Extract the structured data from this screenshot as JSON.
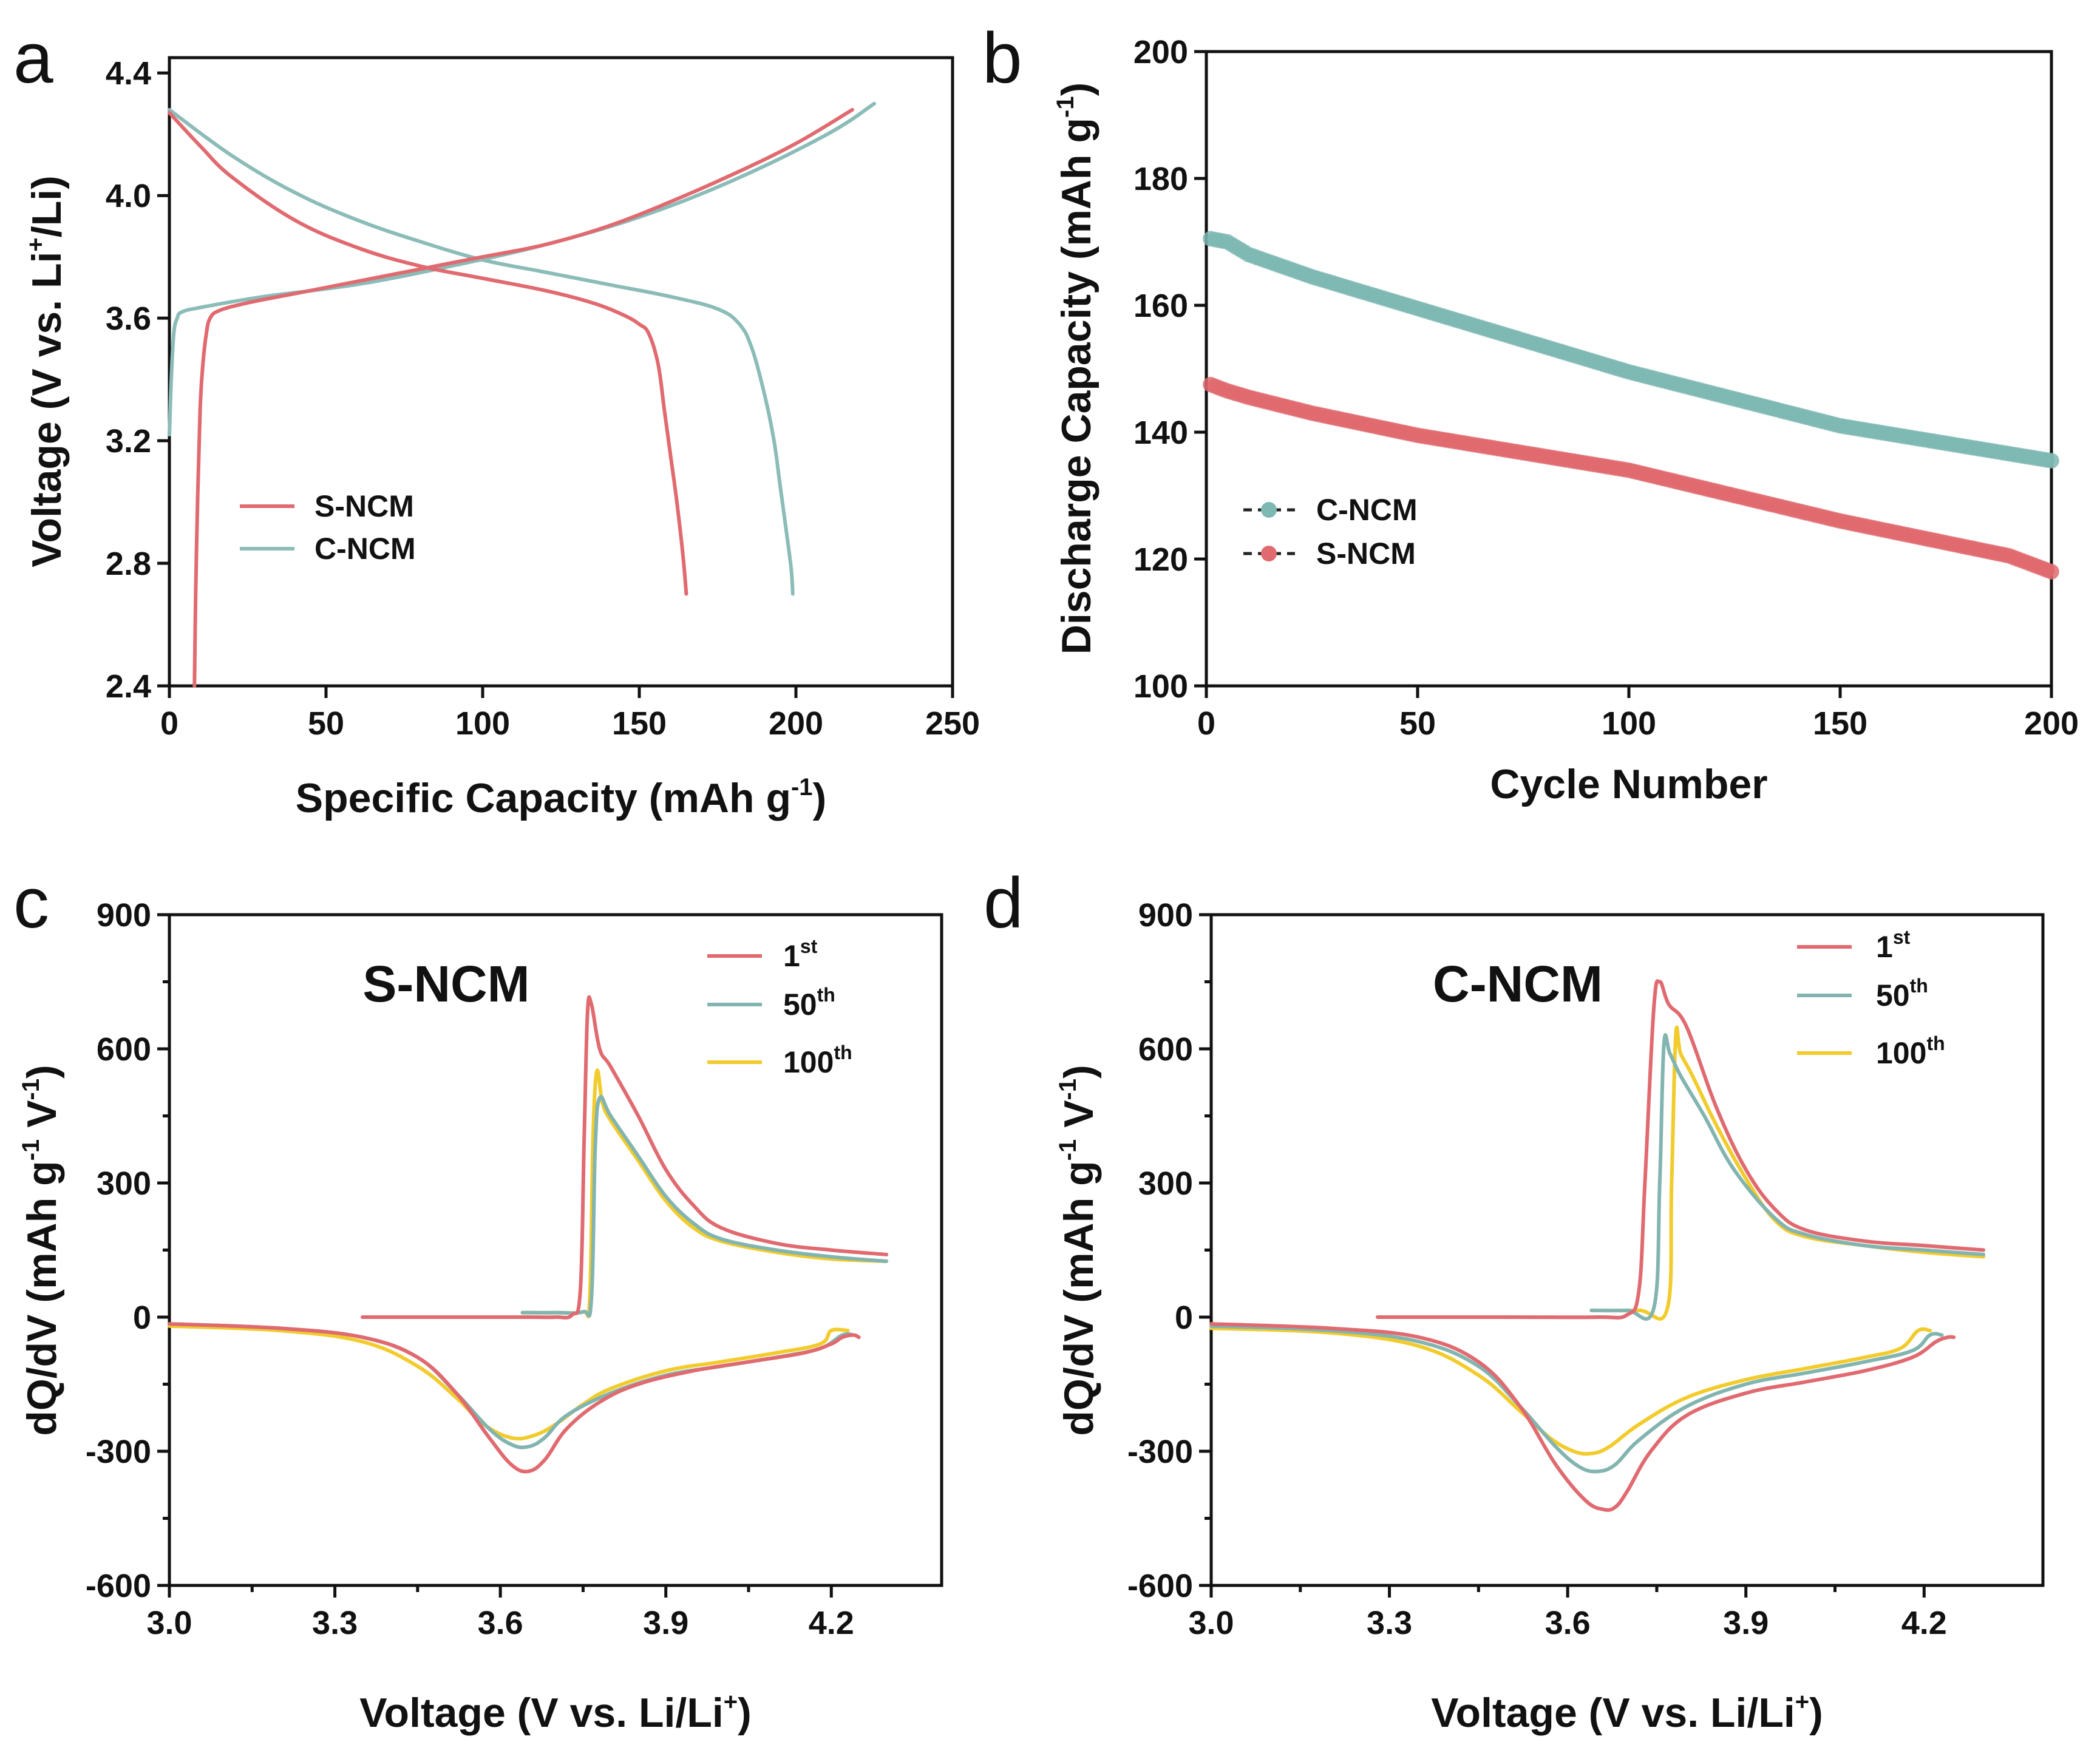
{
  "colors": {
    "s_ncm": "#E06A6F",
    "c_ncm": "#8BBCB8",
    "c_ncm_marker": "#7EB8B3",
    "cycle_1st": "#E06A6F",
    "cycle_50th": "#82B4B0",
    "cycle_100th": "#F2CB2C"
  },
  "chart_data": [
    {
      "panel": "a",
      "type": "line",
      "xlabel": "Specific Capacity (mAh g",
      "xlabel_sup": "-1",
      "xlabel_end": ")",
      "ylabel": "Voltage (V vs. Li",
      "ylabel_sup": "+",
      "ylabel_end": "/Li)",
      "xlim": [
        0,
        250
      ],
      "ylim": [
        2.4,
        4.45
      ],
      "xticks": [
        "0",
        "50",
        "100",
        "150",
        "200",
        "250"
      ],
      "yticks": [
        "2.4",
        "2.8",
        "3.2",
        "3.6",
        "4.0",
        "4.4"
      ],
      "legend": [
        "S-NCM",
        "C-NCM"
      ],
      "series": [
        {
          "name": "S-NCM",
          "segment": "charge",
          "x": [
            8,
            8.4,
            9,
            9.8,
            10.7,
            11.8,
            13,
            16,
            25,
            40,
            60,
            80,
            100,
            120,
            140,
            160,
            180,
            200,
            218
          ],
          "y": [
            2.4,
            2.7,
            3.0,
            3.3,
            3.45,
            3.55,
            3.6,
            3.625,
            3.65,
            3.68,
            3.72,
            3.76,
            3.8,
            3.84,
            3.9,
            3.98,
            4.07,
            4.17,
            4.28
          ]
        },
        {
          "name": "S-NCM",
          "segment": "discharge",
          "x": [
            0,
            10,
            20,
            40,
            60,
            80,
            100,
            120,
            135,
            145,
            150,
            153,
            156,
            158,
            160,
            162,
            164,
            165
          ],
          "y": [
            4.27,
            4.16,
            4.06,
            3.92,
            3.83,
            3.77,
            3.73,
            3.69,
            3.65,
            3.61,
            3.58,
            3.55,
            3.45,
            3.3,
            3.15,
            3.0,
            2.82,
            2.7
          ]
        },
        {
          "name": "C-NCM",
          "segment": "charge",
          "x": [
            0,
            0.6,
            1.4,
            2.5,
            4,
            10,
            30,
            60,
            90,
            120,
            150,
            180,
            210,
            225
          ],
          "y": [
            3.22,
            3.4,
            3.55,
            3.6,
            3.62,
            3.635,
            3.67,
            3.71,
            3.77,
            3.84,
            3.93,
            4.05,
            4.2,
            4.3
          ]
        },
        {
          "name": "C-NCM",
          "segment": "discharge",
          "x": [
            0,
            20,
            40,
            60,
            80,
            100,
            120,
            140,
            160,
            175,
            182,
            186,
            190,
            193,
            195,
            197,
            198.5,
            199
          ],
          "y": [
            4.28,
            4.13,
            4.01,
            3.92,
            3.85,
            3.79,
            3.75,
            3.71,
            3.67,
            3.63,
            3.58,
            3.5,
            3.35,
            3.2,
            3.05,
            2.9,
            2.78,
            2.7
          ]
        }
      ]
    },
    {
      "panel": "b",
      "type": "scatter",
      "xlabel": "Cycle Number",
      "ylabel": "Discharge Capacity (mAh g",
      "ylabel_sup": "-1",
      "ylabel_end": ")",
      "xlim": [
        0,
        200
      ],
      "ylim": [
        100,
        200
      ],
      "xticks": [
        "0",
        "50",
        "100",
        "150",
        "200"
      ],
      "yticks": [
        "100",
        "120",
        "140",
        "160",
        "180",
        "200"
      ],
      "legend": [
        "C-NCM",
        "S-NCM"
      ],
      "series": [
        {
          "name": "C-NCM",
          "x": [
            1,
            5,
            10,
            25,
            50,
            100,
            150,
            200
          ],
          "y": [
            170.5,
            170,
            168,
            164.5,
            159.5,
            149.5,
            141,
            135.5
          ]
        },
        {
          "name": "S-NCM",
          "x": [
            1,
            5,
            10,
            25,
            50,
            100,
            150,
            190,
            200
          ],
          "y": [
            147.5,
            146.5,
            145.5,
            143,
            139.5,
            134,
            126,
            120.5,
            118
          ]
        }
      ]
    },
    {
      "panel": "c",
      "type": "line",
      "sample": "S-NCM",
      "xlabel": "Voltage (V vs. Li/Li",
      "xlabel_sup": "+",
      "xlabel_end": ")",
      "ylabel": "dQ/dV (mAh g",
      "ylabel_sup": "-1",
      "ylabel_mid": " V",
      "ylabel_sup2": "-1",
      "ylabel_end": ")",
      "xlim": [
        3.0,
        4.4
      ],
      "ylim": [
        -600,
        900
      ],
      "xticks": [
        "3.0",
        "3.3",
        "3.6",
        "3.9",
        "4.2"
      ],
      "yticks": [
        "-600",
        "-300",
        "0",
        "300",
        "600",
        "900"
      ],
      "legend": [
        {
          "base": "1",
          "sup": "st"
        },
        {
          "base": "50",
          "sup": "th"
        },
        {
          "base": "100",
          "sup": "th"
        }
      ],
      "series": [
        {
          "name": "1st",
          "segment": "charge",
          "x": [
            3.35,
            3.5,
            3.65,
            3.7,
            3.73,
            3.745,
            3.752,
            3.758,
            3.765,
            3.78,
            3.8,
            3.85,
            3.9,
            3.95,
            4.0,
            4.1,
            4.2,
            4.3
          ],
          "y": [
            0,
            0,
            0,
            0,
            5,
            60,
            400,
            680,
            700,
            600,
            560,
            450,
            330,
            250,
            200,
            165,
            150,
            140
          ]
        },
        {
          "name": "1st",
          "segment": "discharge",
          "x": [
            3.0,
            3.2,
            3.35,
            3.45,
            3.52,
            3.58,
            3.62,
            3.65,
            3.68,
            3.72,
            3.78,
            3.85,
            3.95,
            4.05,
            4.15,
            4.2,
            4.22,
            4.24,
            4.25
          ],
          "y": [
            -15,
            -25,
            -45,
            -90,
            -170,
            -270,
            -330,
            -345,
            -320,
            -250,
            -190,
            -150,
            -120,
            -100,
            -80,
            -60,
            -45,
            -40,
            -45
          ]
        },
        {
          "name": "50th",
          "segment": "charge",
          "x": [
            3.64,
            3.7,
            3.75,
            3.765,
            3.772,
            3.78,
            3.8,
            3.85,
            3.9,
            3.95,
            4.0,
            4.1,
            4.2,
            4.3
          ],
          "y": [
            10,
            10,
            12,
            40,
            380,
            490,
            450,
            360,
            270,
            210,
            175,
            150,
            135,
            125
          ]
        },
        {
          "name": "50th",
          "segment": "discharge",
          "x": [
            3.0,
            3.2,
            3.35,
            3.45,
            3.52,
            3.58,
            3.62,
            3.65,
            3.68,
            3.72,
            3.8,
            3.9,
            4.0,
            4.1,
            4.18,
            4.22,
            4.24
          ],
          "y": [
            -15,
            -25,
            -45,
            -90,
            -170,
            -250,
            -285,
            -290,
            -270,
            -220,
            -170,
            -130,
            -110,
            -90,
            -70,
            -40,
            -40
          ]
        },
        {
          "name": "100th",
          "segment": "charge",
          "x": [
            3.64,
            3.7,
            3.75,
            3.762,
            3.768,
            3.775,
            3.785,
            3.8,
            3.85,
            3.9,
            3.95,
            4.0,
            4.1,
            4.2,
            4.3
          ],
          "y": [
            10,
            10,
            12,
            40,
            400,
            550,
            480,
            440,
            350,
            260,
            200,
            170,
            145,
            130,
            125
          ]
        },
        {
          "name": "100th",
          "segment": "discharge",
          "x": [
            3.0,
            3.2,
            3.35,
            3.45,
            3.52,
            3.57,
            3.62,
            3.66,
            3.7,
            3.75,
            3.8,
            3.9,
            4.0,
            4.1,
            4.18,
            4.2,
            4.23
          ],
          "y": [
            -20,
            -30,
            -55,
            -110,
            -180,
            -240,
            -270,
            -265,
            -240,
            -195,
            -160,
            -120,
            -100,
            -80,
            -60,
            -30,
            -30
          ]
        }
      ]
    },
    {
      "panel": "d",
      "type": "line",
      "sample": "C-NCM",
      "xlabel": "Voltage (V vs. Li/Li",
      "xlabel_sup": "+",
      "xlabel_end": ")",
      "ylabel": "dQ/dV (mAh g",
      "ylabel_sup": "-1",
      "ylabel_mid": " V",
      "ylabel_sup2": "-1",
      "ylabel_end": ")",
      "xlim": [
        3.0,
        4.4
      ],
      "ylim": [
        -600,
        900
      ],
      "xticks": [
        "3.0",
        "3.3",
        "3.6",
        "3.9",
        "4.2"
      ],
      "yticks": [
        "-600",
        "-300",
        "0",
        "300",
        "600",
        "900"
      ],
      "legend": [
        {
          "base": "1",
          "sup": "st"
        },
        {
          "base": "50",
          "sup": "th"
        },
        {
          "base": "100",
          "sup": "th"
        }
      ],
      "series": [
        {
          "name": "1st",
          "segment": "charge",
          "x": [
            3.28,
            3.5,
            3.65,
            3.7,
            3.72,
            3.73,
            3.745,
            3.755,
            3.77,
            3.8,
            3.85,
            3.9,
            3.95,
            4.0,
            4.1,
            4.2,
            4.3
          ],
          "y": [
            0,
            0,
            0,
            5,
            60,
            300,
            690,
            750,
            700,
            650,
            470,
            330,
            240,
            195,
            170,
            160,
            150
          ]
        },
        {
          "name": "1st",
          "segment": "discharge",
          "x": [
            3.0,
            3.2,
            3.35,
            3.45,
            3.52,
            3.58,
            3.63,
            3.66,
            3.68,
            3.7,
            3.74,
            3.8,
            3.9,
            4.0,
            4.1,
            4.18,
            4.22,
            4.24,
            4.25
          ],
          "y": [
            -15,
            -25,
            -45,
            -100,
            -200,
            -330,
            -410,
            -430,
            -425,
            -390,
            -300,
            -220,
            -170,
            -145,
            -120,
            -90,
            -55,
            -45,
            -45
          ]
        },
        {
          "name": "50th",
          "segment": "charge",
          "x": [
            3.64,
            3.7,
            3.745,
            3.755,
            3.762,
            3.772,
            3.79,
            3.83,
            3.88,
            3.95,
            4.0,
            4.1,
            4.2,
            4.3
          ],
          "y": [
            15,
            15,
            20,
            300,
            610,
            590,
            540,
            450,
            330,
            220,
            185,
            160,
            150,
            140
          ]
        },
        {
          "name": "50th",
          "segment": "discharge",
          "x": [
            3.0,
            3.2,
            3.35,
            3.45,
            3.52,
            3.58,
            3.62,
            3.65,
            3.68,
            3.72,
            3.8,
            3.9,
            4.0,
            4.1,
            4.18,
            4.21,
            4.23
          ],
          "y": [
            -20,
            -30,
            -55,
            -110,
            -200,
            -290,
            -335,
            -345,
            -330,
            -275,
            -200,
            -150,
            -125,
            -100,
            -75,
            -40,
            -40
          ]
        },
        {
          "name": "100th",
          "segment": "charge",
          "x": [
            3.64,
            3.72,
            3.768,
            3.775,
            3.782,
            3.79,
            3.81,
            3.85,
            3.9,
            3.95,
            4.0,
            4.1,
            4.2,
            4.3
          ],
          "y": [
            15,
            15,
            20,
            300,
            630,
            590,
            540,
            430,
            310,
            215,
            180,
            160,
            145,
            135
          ]
        },
        {
          "name": "100th",
          "segment": "discharge",
          "x": [
            3.0,
            3.2,
            3.35,
            3.45,
            3.52,
            3.57,
            3.61,
            3.64,
            3.67,
            3.72,
            3.8,
            3.9,
            4.0,
            4.1,
            4.16,
            4.19,
            4.21
          ],
          "y": [
            -25,
            -35,
            -65,
            -130,
            -210,
            -270,
            -300,
            -305,
            -290,
            -240,
            -180,
            -140,
            -115,
            -90,
            -70,
            -30,
            -30
          ]
        }
      ]
    }
  ]
}
